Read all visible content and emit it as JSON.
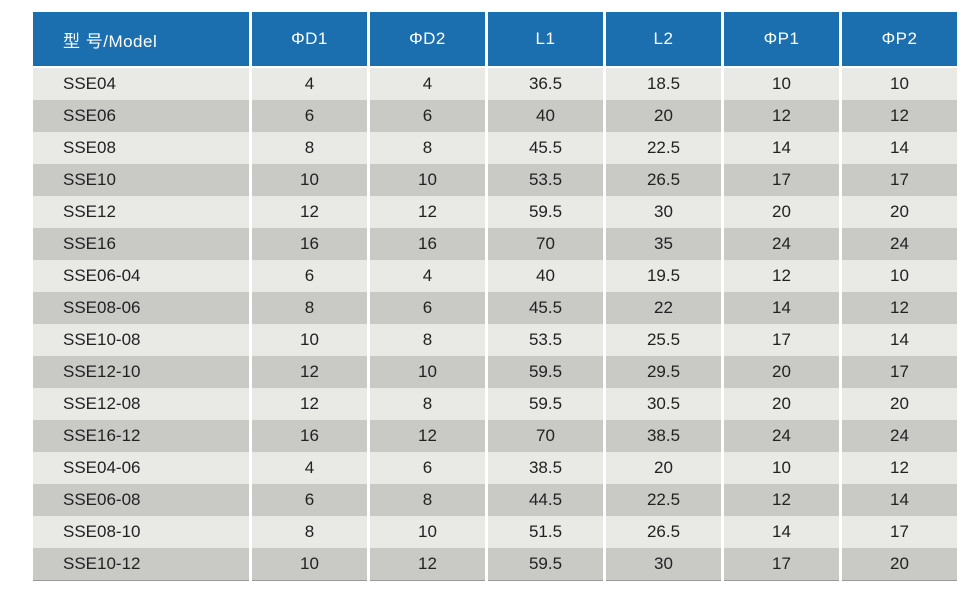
{
  "colors": {
    "header_bg": "#1b6fae",
    "header_text": "#ffffff",
    "row_light": "#e9e9e5",
    "row_dark": "#c9c9c5",
    "body_text": "#222222"
  },
  "table": {
    "columns": [
      "型 号/Model",
      "ΦD1",
      "ΦD2",
      "L1",
      "L2",
      "ΦP1",
      "ΦP2"
    ],
    "rows": [
      [
        "SSE04",
        "4",
        "4",
        "36.5",
        "18.5",
        "10",
        "10"
      ],
      [
        "SSE06",
        "6",
        "6",
        "40",
        "20",
        "12",
        "12"
      ],
      [
        "SSE08",
        "8",
        "8",
        "45.5",
        "22.5",
        "14",
        "14"
      ],
      [
        "SSE10",
        "10",
        "10",
        "53.5",
        "26.5",
        "17",
        "17"
      ],
      [
        "SSE12",
        "12",
        "12",
        "59.5",
        "30",
        "20",
        "20"
      ],
      [
        "SSE16",
        "16",
        "16",
        "70",
        "35",
        "24",
        "24"
      ],
      [
        "SSE06-04",
        "6",
        "4",
        "40",
        "19.5",
        "12",
        "10"
      ],
      [
        "SSE08-06",
        "8",
        "6",
        "45.5",
        "22",
        "14",
        "12"
      ],
      [
        "SSE10-08",
        "10",
        "8",
        "53.5",
        "25.5",
        "17",
        "14"
      ],
      [
        "SSE12-10",
        "12",
        "10",
        "59.5",
        "29.5",
        "20",
        "17"
      ],
      [
        "SSE12-08",
        "12",
        "8",
        "59.5",
        "30.5",
        "20",
        "20"
      ],
      [
        "SSE16-12",
        "16",
        "12",
        "70",
        "38.5",
        "24",
        "24"
      ],
      [
        "SSE04-06",
        "4",
        "6",
        "38.5",
        "20",
        "10",
        "12"
      ],
      [
        "SSE06-08",
        "6",
        "8",
        "44.5",
        "22.5",
        "12",
        "14"
      ],
      [
        "SSE08-10",
        "8",
        "10",
        "51.5",
        "26.5",
        "14",
        "17"
      ],
      [
        "SSE10-12",
        "10",
        "12",
        "59.5",
        "30",
        "17",
        "20"
      ]
    ]
  }
}
